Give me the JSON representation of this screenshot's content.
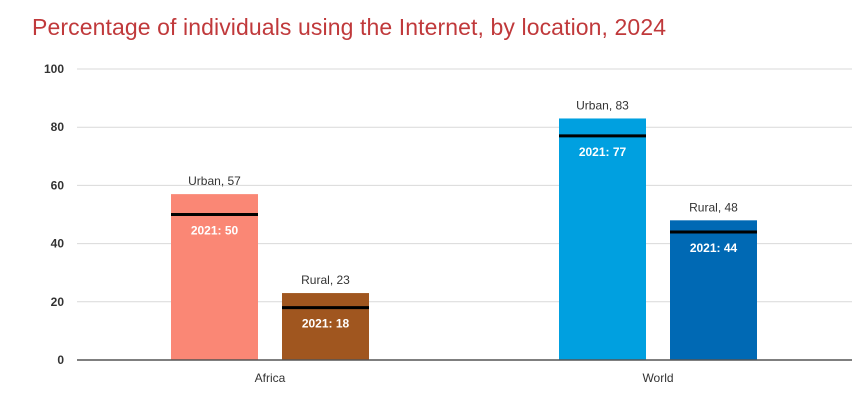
{
  "title": "Percentage of individuals using the Internet, by location, 2024",
  "chart_data": {
    "type": "bar",
    "title": "Percentage of individuals using the Internet, by location, 2024",
    "xlabel": "",
    "ylabel": "",
    "ylim": [
      0,
      100
    ],
    "yticks": [
      0,
      20,
      40,
      60,
      80,
      100
    ],
    "grid": true,
    "categories": [
      "Africa",
      "World"
    ],
    "series": [
      {
        "name": "Urban",
        "values": [
          57,
          83
        ],
        "reference_2021": [
          50,
          77
        ],
        "colors": [
          "#fa8775",
          "#00a0e0"
        ]
      },
      {
        "name": "Rural",
        "values": [
          23,
          48
        ],
        "reference_2021": [
          18,
          44
        ],
        "colors": [
          "#a0561f",
          "#0069b4"
        ]
      }
    ],
    "bar_labels": [
      [
        "Urban, 57",
        "Rural, 23"
      ],
      [
        "Urban, 83",
        "Rural, 48"
      ]
    ],
    "reference_labels": [
      [
        "2021: 50",
        "2021: 18"
      ],
      [
        "2021: 77",
        "2021: 44"
      ]
    ],
    "reference_line_color": "#000000",
    "axis_color": "#555555",
    "grid_color": "#d9d9d9"
  }
}
